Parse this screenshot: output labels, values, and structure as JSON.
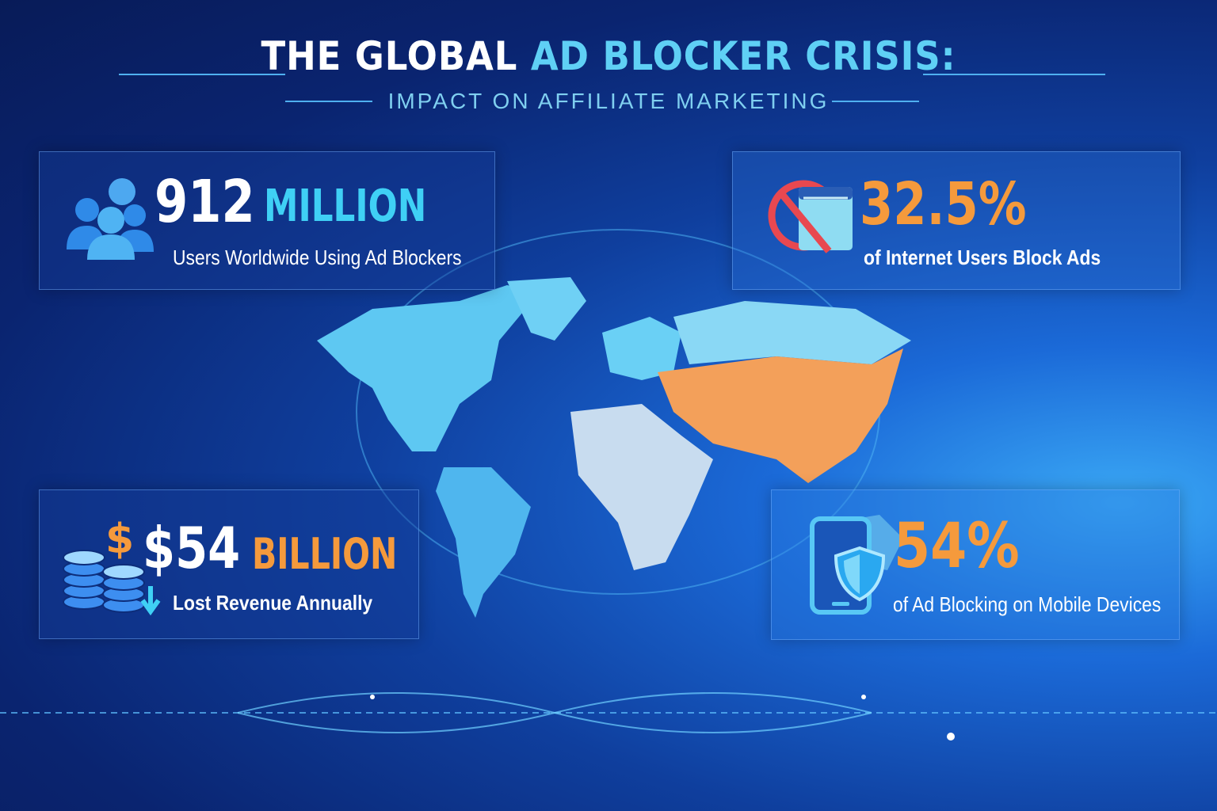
{
  "header": {
    "title_part1": "THE GLOBAL",
    "title_part2": "AD BLOCKER CRISIS:",
    "subtitle": "IMPACT ON AFFILIATE MARKETING"
  },
  "stats": [
    {
      "icon": "users-group-icon",
      "value": "912",
      "unit": "MILLION",
      "description": "Users Worldwide Using Ad Blockers"
    },
    {
      "icon": "blocked-browser-icon",
      "value": "32.5%",
      "description": "of Internet Users Block Ads"
    },
    {
      "icon": "coins-dollar-down-icon",
      "value": "$54",
      "unit": "BILLION",
      "description": "Lost Revenue Annually"
    },
    {
      "icon": "mobile-shield-icon",
      "value": "54%",
      "description": "of Ad Blocking on Mobile Devices"
    }
  ],
  "colors": {
    "accent_cyan": "#3fd0f5",
    "accent_orange": "#f59a3c",
    "block_red": "#e84850",
    "map_highlight": "#f3a05a",
    "map_base": "#6fd0f5"
  }
}
